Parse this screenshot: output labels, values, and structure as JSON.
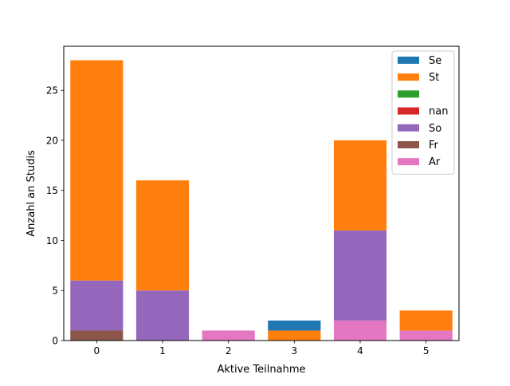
{
  "chart_data": {
    "type": "bar",
    "stacked": true,
    "title": "",
    "xlabel": "Aktive Teilnahme",
    "ylabel": "Anzahl an Studis",
    "categories": [
      "0",
      "1",
      "2",
      "3",
      "4",
      "5"
    ],
    "xlim": [
      -0.5,
      5.5
    ],
    "ylim": [
      0,
      29.4
    ],
    "yticks": [
      0,
      5,
      10,
      15,
      20,
      25
    ],
    "grid": false,
    "legend_position": "top-right",
    "series": [
      {
        "name": "Se",
        "color": "#1f77b4",
        "values": [
          0,
          0,
          0,
          1,
          0,
          0
        ]
      },
      {
        "name": "St",
        "color": "#ff7f0e",
        "values": [
          22,
          11,
          0,
          1,
          9,
          2
        ]
      },
      {
        "name": "",
        "color": "#2ca02c",
        "values": [
          0,
          0,
          0,
          0,
          0,
          0
        ]
      },
      {
        "name": "nan",
        "color": "#d62728",
        "values": [
          0,
          0,
          0,
          0,
          0,
          0
        ]
      },
      {
        "name": "So",
        "color": "#9467bd",
        "values": [
          5,
          5,
          0,
          0,
          9,
          0
        ]
      },
      {
        "name": "Fr",
        "color": "#8c564b",
        "values": [
          1,
          0,
          0,
          0,
          0,
          0
        ]
      },
      {
        "name": "Ar",
        "color": "#e377c2",
        "values": [
          0,
          0,
          1,
          0,
          2,
          1
        ]
      }
    ],
    "stack_order": [
      "Ar",
      "Fr",
      "So",
      "nan",
      "",
      "St",
      "Se"
    ]
  }
}
